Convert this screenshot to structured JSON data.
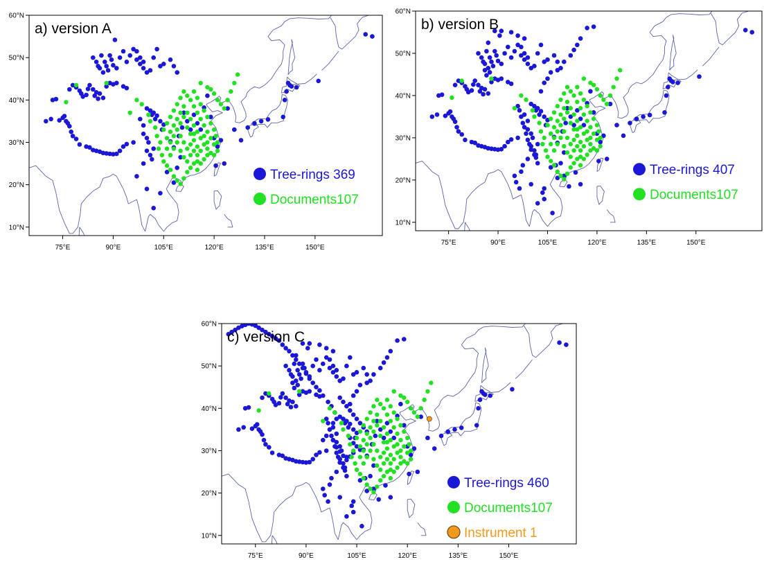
{
  "colors": {
    "tree": "#1a18d6",
    "documents": "#22e022",
    "instrument": "#f09a1c",
    "instrument_edge": "#6b4a1a",
    "coast": "#5a63a8"
  },
  "axes": {
    "lon_ticks": [
      "75°E",
      "90°E",
      "105°E",
      "120°E",
      "135°E",
      "150°E"
    ],
    "lat_ticks": [
      "10°N",
      "20°N",
      "30°N",
      "40°N",
      "50°N",
      "60°N"
    ],
    "lon_values": [
      75,
      90,
      105,
      120,
      135,
      150
    ],
    "lat_values": [
      10,
      20,
      30,
      40,
      50,
      60
    ],
    "lon_range": [
      65,
      170
    ],
    "lat_range": [
      8,
      60
    ]
  },
  "panels": [
    {
      "title": "a) version A",
      "legend": [
        {
          "kind": "tree",
          "label": "Tree-rings  369"
        },
        {
          "kind": "documents",
          "label": "Documents107"
        }
      ],
      "has_instrument": false
    },
    {
      "title": "b) version B",
      "legend": [
        {
          "kind": "tree",
          "label": "Tree-rings  407"
        },
        {
          "kind": "documents",
          "label": "Documents107"
        }
      ],
      "has_instrument": false
    },
    {
      "title": "c) version C",
      "legend": [
        {
          "kind": "tree",
          "label": "Tree-rings  460"
        },
        {
          "kind": "documents",
          "label": "Documents107"
        },
        {
          "kind": "instrument",
          "label": "Instrument   1"
        }
      ],
      "has_instrument": true
    }
  ],
  "sites": {
    "tree": [
      [
        70,
        35
      ],
      [
        71.5,
        35.5
      ],
      [
        72,
        40
      ],
      [
        73,
        40.2
      ],
      [
        74,
        35.2
      ],
      [
        75,
        35.8
      ],
      [
        75.5,
        36.2
      ],
      [
        76,
        35
      ],
      [
        76.5,
        34.5
      ],
      [
        77,
        33.8
      ],
      [
        77.5,
        32.5
      ],
      [
        78,
        31.5
      ],
      [
        79,
        30.8
      ],
      [
        80,
        29.5
      ],
      [
        82,
        29
      ],
      [
        83,
        28.8
      ],
      [
        84,
        28.2
      ],
      [
        85,
        28
      ],
      [
        86,
        27.8
      ],
      [
        87,
        27.5
      ],
      [
        88,
        27.4
      ],
      [
        89,
        27.3
      ],
      [
        90,
        27.2
      ],
      [
        91,
        27.3
      ],
      [
        92,
        28
      ],
      [
        93,
        29
      ],
      [
        94,
        29.6
      ],
      [
        96,
        30
      ],
      [
        77,
        42.5
      ],
      [
        78,
        43.5
      ],
      [
        79,
        43
      ],
      [
        80,
        42.2
      ],
      [
        80.5,
        41.5
      ],
      [
        81,
        40.8
      ],
      [
        82,
        41.2
      ],
      [
        82.5,
        42.6
      ],
      [
        83,
        43.5
      ],
      [
        84,
        42.5
      ],
      [
        84.5,
        41
      ],
      [
        85,
        41.8
      ],
      [
        85.5,
        40.3
      ],
      [
        86,
        41.5
      ],
      [
        87,
        40.5
      ],
      [
        88,
        43.2
      ],
      [
        89,
        44
      ],
      [
        90,
        43.7
      ],
      [
        91,
        44
      ],
      [
        93,
        43.2
      ],
      [
        94,
        42.8
      ],
      [
        84,
        50
      ],
      [
        85,
        49
      ],
      [
        85.5,
        48
      ],
      [
        86,
        47.5
      ],
      [
        86.5,
        50.5
      ],
      [
        87,
        46.5
      ],
      [
        87.5,
        49
      ],
      [
        88,
        48
      ],
      [
        88.5,
        47
      ],
      [
        89,
        50.5
      ],
      [
        89.5,
        49.5
      ],
      [
        90,
        48.2
      ],
      [
        90.5,
        54.2
      ],
      [
        91,
        47.5
      ],
      [
        92,
        50
      ],
      [
        93,
        51.5
      ],
      [
        94,
        49
      ],
      [
        95,
        50.5
      ],
      [
        96,
        52
      ],
      [
        97,
        49.5
      ],
      [
        98,
        48.5
      ],
      [
        99,
        47.5
      ],
      [
        100,
        46.5
      ],
      [
        97,
        51.5
      ],
      [
        98,
        50
      ],
      [
        99,
        49
      ],
      [
        101,
        47
      ],
      [
        102,
        50
      ],
      [
        103,
        52
      ],
      [
        104,
        48
      ],
      [
        105,
        48.5
      ],
      [
        107,
        49.5
      ],
      [
        108,
        48
      ],
      [
        109,
        46.5
      ],
      [
        100,
        38
      ],
      [
        101,
        37.5
      ],
      [
        101.5,
        36.5
      ],
      [
        102,
        37
      ],
      [
        102.5,
        35.5
      ],
      [
        103,
        36.3
      ],
      [
        104,
        35
      ],
      [
        104.5,
        33
      ],
      [
        105,
        34.2
      ],
      [
        98,
        35.5
      ],
      [
        99,
        34
      ],
      [
        99,
        32
      ],
      [
        100,
        31
      ],
      [
        100.5,
        30
      ],
      [
        100,
        28
      ],
      [
        101,
        27
      ],
      [
        101.5,
        26
      ],
      [
        102,
        28.5
      ],
      [
        99,
        25
      ],
      [
        97,
        22
      ],
      [
        100,
        19
      ],
      [
        102,
        14.5
      ],
      [
        108,
        20.5
      ],
      [
        104,
        18
      ],
      [
        106,
        23
      ],
      [
        109,
        24
      ],
      [
        110,
        26.5
      ],
      [
        107,
        30.2
      ],
      [
        108,
        28.8
      ],
      [
        109.5,
        31.5
      ],
      [
        110.5,
        33.5
      ],
      [
        111,
        37
      ],
      [
        112,
        35
      ],
      [
        113,
        33
      ],
      [
        114,
        36.5
      ],
      [
        115,
        34.5
      ],
      [
        116,
        33
      ],
      [
        117,
        38.2
      ],
      [
        118,
        41
      ],
      [
        119,
        36
      ],
      [
        120,
        31
      ],
      [
        121,
        29
      ],
      [
        122,
        30.5
      ],
      [
        124,
        38
      ],
      [
        120.5,
        24.5
      ],
      [
        123,
        25
      ],
      [
        126,
        33
      ],
      [
        128,
        30.5
      ],
      [
        130,
        33.5
      ],
      [
        132,
        34.5
      ],
      [
        134,
        35
      ],
      [
        136,
        35.4
      ],
      [
        140.5,
        36
      ],
      [
        141,
        40
      ],
      [
        141.5,
        42
      ],
      [
        142,
        44
      ],
      [
        142.5,
        43.5
      ],
      [
        143,
        43.2
      ],
      [
        144.5,
        43
      ],
      [
        151,
        44.5
      ],
      [
        165,
        55.5
      ],
      [
        167,
        55
      ]
    ],
    "tree_b": [
      [
        96,
        37.5
      ],
      [
        96.5,
        36.5
      ],
      [
        97,
        35
      ],
      [
        97.5,
        33.5
      ],
      [
        98,
        32.5
      ],
      [
        98.5,
        31
      ],
      [
        99,
        29.5
      ],
      [
        99.5,
        28.5
      ],
      [
        100,
        27.2
      ],
      [
        101,
        26
      ],
      [
        101.5,
        25.3
      ],
      [
        102,
        24
      ],
      [
        97.5,
        23.5
      ],
      [
        95,
        21
      ],
      [
        95.5,
        19.5
      ],
      [
        96.5,
        18
      ],
      [
        103.5,
        17
      ],
      [
        104,
        15.5
      ],
      [
        106.5,
        12.2
      ],
      [
        110,
        21
      ],
      [
        107.5,
        23.5
      ],
      [
        111.5,
        18.5
      ],
      [
        113.5,
        21.8
      ],
      [
        115,
        19
      ],
      [
        103,
        41
      ],
      [
        104,
        43
      ],
      [
        105,
        44
      ],
      [
        106,
        45.5
      ],
      [
        108,
        46
      ],
      [
        110,
        48
      ],
      [
        112,
        49.5
      ],
      [
        113,
        50.8
      ],
      [
        114,
        52
      ],
      [
        115,
        53.5
      ],
      [
        117,
        56
      ],
      [
        119,
        56.3
      ],
      [
        87,
        52.5
      ],
      [
        89,
        55.3
      ],
      [
        91,
        55.3
      ],
      [
        94,
        55
      ],
      [
        96,
        54.2
      ],
      [
        98,
        53.5
      ],
      [
        86,
        46
      ],
      [
        86.5,
        44.8
      ],
      [
        87.5,
        45.5
      ]
    ],
    "tree_c": [
      [
        100,
        42.5
      ],
      [
        101,
        41.5
      ],
      [
        102,
        40.5
      ],
      [
        103,
        39.5
      ],
      [
        104,
        38.5
      ],
      [
        105,
        37.5
      ],
      [
        106,
        36.5
      ],
      [
        107,
        35.5
      ],
      [
        108,
        34.5
      ],
      [
        103,
        33
      ],
      [
        104,
        31.8
      ],
      [
        105,
        31
      ],
      [
        106,
        30.2
      ],
      [
        104,
        29.5
      ],
      [
        103,
        28.6
      ],
      [
        102,
        27.8
      ],
      [
        101,
        28.8
      ],
      [
        100,
        29.8
      ],
      [
        99,
        30.8
      ],
      [
        98,
        32.5
      ],
      [
        99,
        37.5
      ],
      [
        98,
        36.5
      ],
      [
        97,
        35
      ],
      [
        96,
        33.5
      ],
      [
        95,
        32.5
      ],
      [
        98.5,
        39
      ],
      [
        97.5,
        40.5
      ],
      [
        96.5,
        41.5
      ],
      [
        95,
        43
      ],
      [
        94,
        44.2
      ],
      [
        93,
        45
      ],
      [
        92,
        46
      ],
      [
        91,
        47
      ],
      [
        90,
        48.5
      ],
      [
        89,
        49.5
      ],
      [
        88,
        50.5
      ],
      [
        87,
        51.5
      ],
      [
        86,
        52.5
      ],
      [
        85,
        53.5
      ],
      [
        84,
        54.2
      ],
      [
        83,
        55
      ],
      [
        82,
        56
      ],
      [
        81,
        56.5
      ],
      [
        80,
        57
      ],
      [
        79,
        57.5
      ],
      [
        78,
        58
      ],
      [
        77,
        58.5
      ],
      [
        76,
        59
      ],
      [
        75,
        59.5
      ],
      [
        74,
        59.8
      ],
      [
        73,
        60
      ],
      [
        72,
        59.7
      ],
      [
        71,
        59.4
      ],
      [
        70,
        59
      ],
      [
        69,
        58.5
      ],
      [
        68,
        58
      ],
      [
        67,
        57.5
      ]
    ],
    "documents": [
      [
        76,
        39.5
      ],
      [
        79,
        43.5
      ],
      [
        88,
        44
      ],
      [
        95,
        37
      ],
      [
        97,
        40
      ],
      [
        98.5,
        39
      ],
      [
        100.5,
        36.5
      ],
      [
        101,
        35
      ],
      [
        102.5,
        33.5
      ],
      [
        103,
        31.5
      ],
      [
        104,
        30
      ],
      [
        103.5,
        28.5
      ],
      [
        104.5,
        27
      ],
      [
        105,
        25.5
      ],
      [
        106,
        24.5
      ],
      [
        107,
        23.5
      ],
      [
        108,
        22
      ],
      [
        109,
        21
      ],
      [
        110,
        20.2
      ],
      [
        111,
        21.5
      ],
      [
        112,
        23
      ],
      [
        113,
        24
      ],
      [
        114,
        25
      ],
      [
        115,
        25.5
      ],
      [
        116,
        25
      ],
      [
        117,
        26
      ],
      [
        118,
        27
      ],
      [
        119,
        27.5
      ],
      [
        120,
        27
      ],
      [
        121,
        28
      ],
      [
        121,
        30
      ],
      [
        120.5,
        31.5
      ],
      [
        120,
        33
      ],
      [
        119,
        34.5
      ],
      [
        118,
        36
      ],
      [
        117,
        37.5
      ],
      [
        116,
        39
      ],
      [
        115,
        40.5
      ],
      [
        114,
        42
      ],
      [
        116,
        44
      ],
      [
        118,
        43
      ],
      [
        119,
        42.5
      ],
      [
        120,
        41.5
      ],
      [
        121,
        40
      ],
      [
        122,
        39
      ],
      [
        123,
        38
      ],
      [
        124,
        40
      ],
      [
        125,
        42
      ],
      [
        126,
        44
      ],
      [
        127,
        46
      ],
      [
        105,
        33
      ],
      [
        106,
        34.5
      ],
      [
        107,
        36
      ],
      [
        108,
        37.5
      ],
      [
        109,
        39
      ],
      [
        110,
        40.5
      ],
      [
        111,
        42
      ],
      [
        112,
        41
      ],
      [
        113,
        40
      ],
      [
        114,
        38.5
      ],
      [
        115,
        37
      ],
      [
        116,
        35.5
      ],
      [
        117,
        34
      ],
      [
        118,
        32.5
      ],
      [
        119,
        31
      ],
      [
        120,
        29.5
      ],
      [
        106,
        31
      ],
      [
        107,
        32.5
      ],
      [
        108,
        34
      ],
      [
        109,
        35.5
      ],
      [
        110,
        37
      ],
      [
        111,
        38.5
      ],
      [
        112,
        37
      ],
      [
        113,
        35.5
      ],
      [
        114,
        34
      ],
      [
        115,
        32.5
      ],
      [
        116,
        31
      ],
      [
        117,
        29.5
      ],
      [
        118,
        28.5
      ],
      [
        106,
        28.5
      ],
      [
        107,
        30
      ],
      [
        108,
        31.5
      ],
      [
        109,
        33
      ],
      [
        110,
        34.5
      ],
      [
        111,
        36
      ],
      [
        112,
        33.5
      ],
      [
        113,
        32
      ],
      [
        114,
        30.5
      ],
      [
        115,
        29
      ],
      [
        116,
        28
      ],
      [
        107,
        27
      ],
      [
        108,
        28.5
      ],
      [
        109,
        30
      ],
      [
        110,
        31.5
      ],
      [
        111,
        30
      ],
      [
        112,
        28.5
      ],
      [
        113,
        27
      ],
      [
        114,
        28
      ],
      [
        115,
        27
      ],
      [
        110,
        28
      ],
      [
        111,
        26.5
      ],
      [
        112,
        25.5
      ],
      [
        113,
        29.5
      ],
      [
        114,
        32
      ],
      [
        117,
        31.5
      ],
      [
        118,
        30
      ],
      [
        115,
        23.5
      ]
    ],
    "instrument": [
      [
        126.5,
        37.5
      ]
    ]
  }
}
